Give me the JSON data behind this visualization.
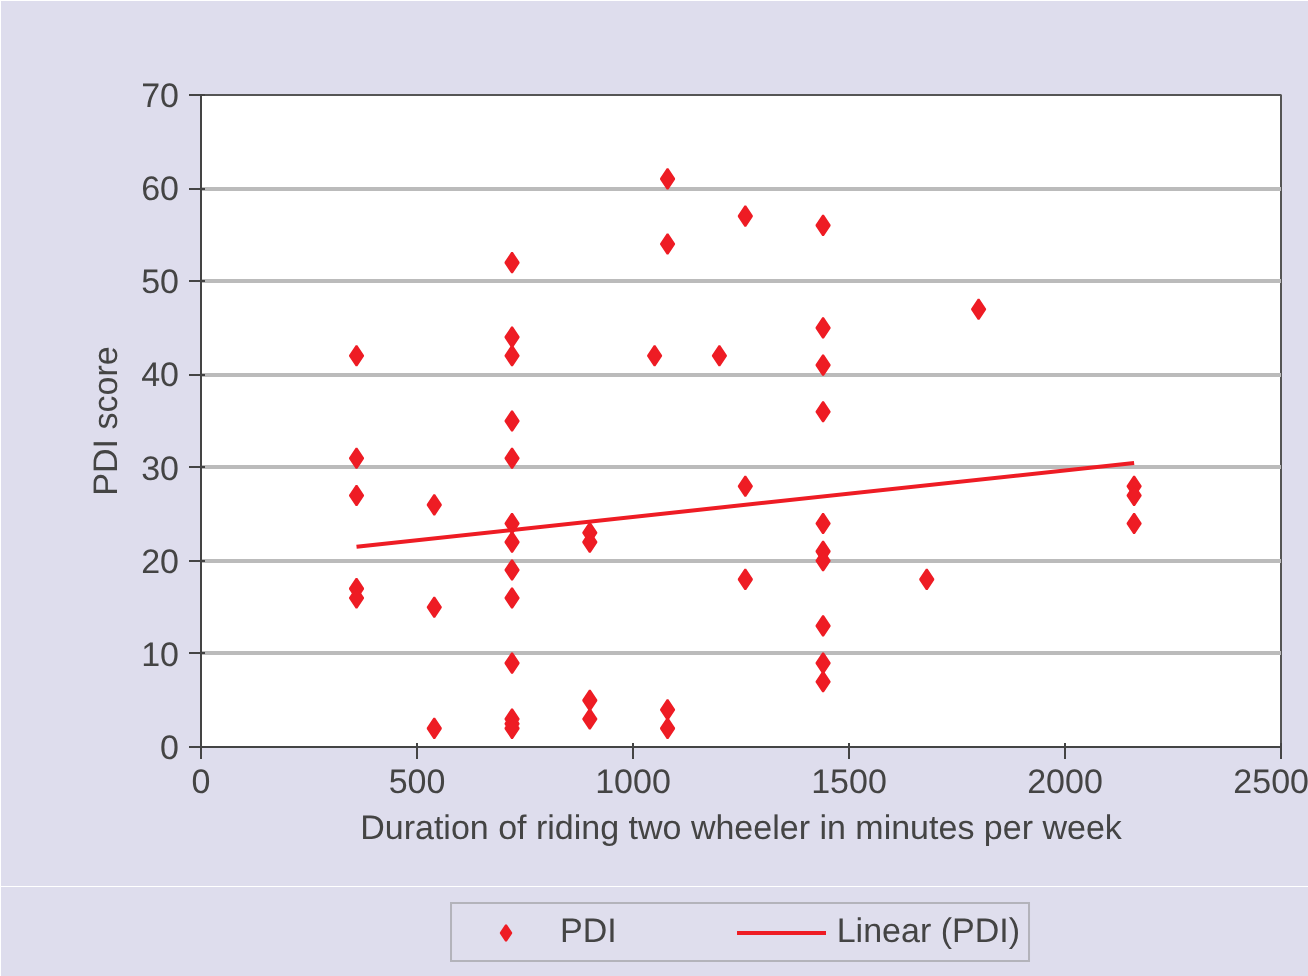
{
  "chart_data": {
    "type": "scatter",
    "xlabel": "Duration of riding two wheeler in minutes per week",
    "ylabel": "PDI score",
    "xlim": [
      0,
      2500
    ],
    "xticks": [
      0,
      500,
      1000,
      1500,
      2000,
      2500
    ],
    "ylim": [
      0,
      70
    ],
    "yticks": [
      0,
      10,
      20,
      30,
      40,
      50,
      60,
      70
    ],
    "grid": "y",
    "legend": "bottom",
    "series": [
      {
        "name": "PDI",
        "color": "#ee1c24",
        "marker": "diamond",
        "x": [
          360,
          360,
          360,
          360,
          360,
          540,
          540,
          540,
          720,
          720,
          720,
          720,
          720,
          720,
          720,
          720,
          720,
          720,
          720,
          720,
          720,
          900,
          900,
          900,
          900,
          1050,
          1080,
          1080,
          1080,
          1080,
          1200,
          1260,
          1260,
          1260,
          1440,
          1440,
          1440,
          1440,
          1440,
          1440,
          1440,
          1440,
          1440,
          1440,
          1680,
          1800,
          2160,
          2160,
          2160
        ],
        "values": [
          42,
          31,
          27,
          17,
          16,
          26,
          15,
          2,
          52,
          44,
          42,
          35,
          31,
          24,
          22,
          19,
          16,
          9,
          3,
          2.5,
          2,
          23,
          22,
          5,
          3,
          42,
          61,
          54,
          4,
          2,
          42,
          57,
          28,
          18,
          56,
          45,
          41,
          36,
          24,
          21,
          20,
          13,
          9,
          7,
          18,
          47,
          28,
          27,
          24
        ]
      },
      {
        "name": "Linear (PDI)",
        "color": "#ee1c24",
        "type": "line",
        "line_style": "solid",
        "x": [
          360,
          2160
        ],
        "values": [
          21.5,
          30.5
        ]
      }
    ]
  }
}
